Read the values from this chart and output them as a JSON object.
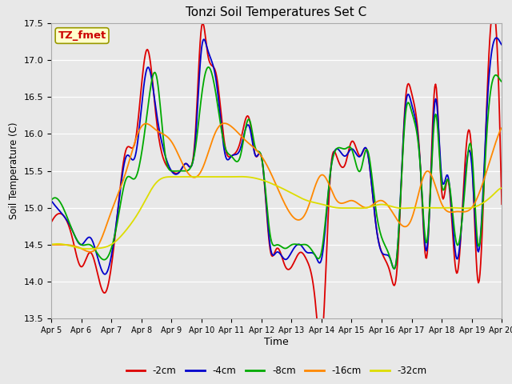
{
  "title": "Tonzi Soil Temperatures Set C",
  "xlabel": "Time",
  "ylabel": "Soil Temperature (C)",
  "ylim": [
    13.5,
    17.5
  ],
  "annotation_text": "TZ_fmet",
  "annotation_bg": "#ffffcc",
  "annotation_border": "#999900",
  "annotation_text_color": "#cc0000",
  "series": {
    "-2cm": {
      "color": "#dd0000"
    },
    "-4cm": {
      "color": "#0000cc"
    },
    "-8cm": {
      "color": "#00aa00"
    },
    "-16cm": {
      "color": "#ff8800"
    },
    "-32cm": {
      "color": "#dddd00"
    }
  },
  "x_tick_labels": [
    "Apr 5",
    "Apr 6",
    "Apr 7",
    "Apr 8",
    "Apr 9",
    "Apr 10",
    "Apr 11",
    "Apr 12",
    "Apr 13",
    "Apr 14",
    "Apr 15",
    "Apr 16",
    "Apr 17",
    "Apr 18",
    "Apr 19",
    "Apr 20"
  ],
  "yticks": [
    13.5,
    14.0,
    14.5,
    15.0,
    15.5,
    16.0,
    16.5,
    17.0,
    17.5
  ],
  "grid_color": "#ffffff",
  "bg_color": "#e8e8e8"
}
